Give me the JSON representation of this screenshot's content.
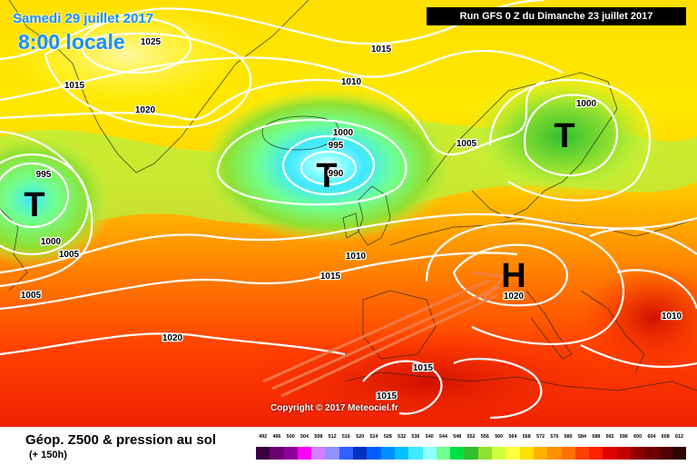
{
  "header": {
    "date": "Samedi 29 juillet 2017",
    "time": "8:00 locale",
    "run": "Run GFS 0 Z du Dimanche 23 juillet 2017"
  },
  "copyright": "Copyright © 2017 Meteociel.fr",
  "footer": {
    "product": "Géop. Z500 & pression au sol",
    "forecast_hour": "(+ 150h)"
  },
  "pressure_systems": [
    {
      "symbol": "T",
      "type": "low",
      "name": "low-west"
    },
    {
      "symbol": "T",
      "type": "low",
      "name": "low-iceland"
    },
    {
      "symbol": "T",
      "type": "low",
      "name": "low-scandinavia"
    },
    {
      "symbol": "H",
      "type": "high",
      "name": "high-alps"
    }
  ],
  "isobar_labels": [
    "1025",
    "1015",
    "1010",
    "1020",
    "1015",
    "1000",
    "995",
    "990",
    "1005",
    "1000",
    "995",
    "1000",
    "1005",
    "1005",
    "1010",
    "1015",
    "1020",
    "1010",
    "1015",
    "1020",
    "1015"
  ],
  "legend": {
    "values": [
      492,
      496,
      500,
      504,
      508,
      512,
      516,
      520,
      524,
      528,
      532,
      536,
      540,
      544,
      548,
      552,
      556,
      560,
      564,
      568,
      572,
      576,
      580,
      584,
      588,
      592,
      596,
      600,
      604,
      608,
      612
    ],
    "colors": [
      "#3a0042",
      "#6a006e",
      "#90009a",
      "#ff00ff",
      "#d080ff",
      "#9090ff",
      "#3060ff",
      "#0030c0",
      "#0060ff",
      "#0090ff",
      "#00c0ff",
      "#40e8ff",
      "#90ffff",
      "#70ff90",
      "#00e040",
      "#30c030",
      "#90e030",
      "#d0ff40",
      "#ffff40",
      "#ffe000",
      "#ffb000",
      "#ff9000",
      "#ff7000",
      "#ff4000",
      "#ff2000",
      "#e00000",
      "#c00000",
      "#900000",
      "#700000",
      "#500000",
      "#300000"
    ]
  },
  "colors": {
    "title_blue": "#1a8fff",
    "isobar": "#ffffff",
    "arrow": "#f08050"
  }
}
